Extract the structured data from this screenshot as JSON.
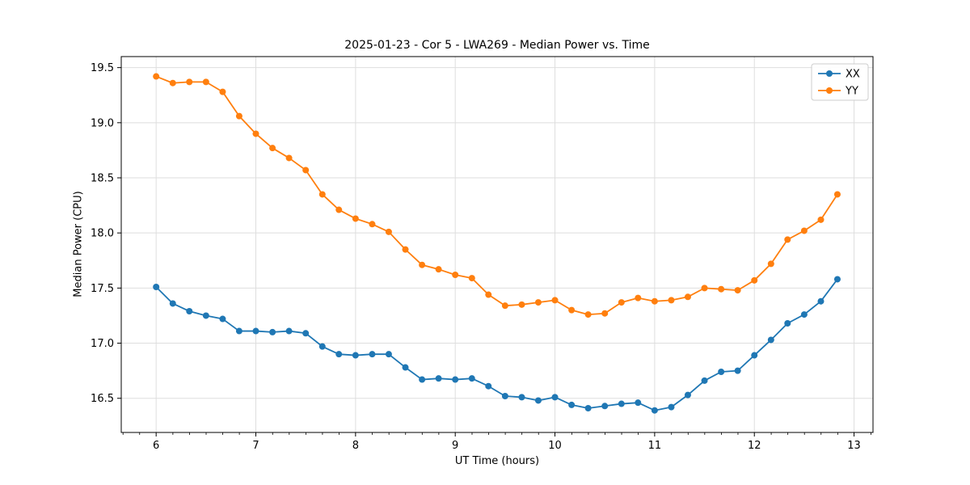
{
  "figure": {
    "background": "#ffffff"
  },
  "chart_data": {
    "type": "line",
    "title": "2025-01-23 - Cor 5 - LWA269 - Median Power vs. Time",
    "xlabel": "UT Time (hours)",
    "ylabel": "Median Power (CPU)",
    "xlim": [
      5.65,
      13.19
    ],
    "ylim": [
      16.19,
      19.6
    ],
    "xticks": [
      6,
      7,
      8,
      9,
      10,
      11,
      12,
      13
    ],
    "yticks": [
      16.5,
      17.0,
      17.5,
      18.0,
      18.5,
      19.0,
      19.5
    ],
    "x_minor_tick_step": 0.1667,
    "grid": true,
    "grid_color": "#dedede",
    "legend_position": "upper right",
    "x": [
      6.0,
      6.167,
      6.333,
      6.5,
      6.667,
      6.833,
      7.0,
      7.167,
      7.333,
      7.5,
      7.667,
      7.833,
      8.0,
      8.167,
      8.333,
      8.5,
      8.667,
      8.833,
      9.0,
      9.167,
      9.333,
      9.5,
      9.667,
      9.833,
      10.0,
      10.167,
      10.333,
      10.5,
      10.667,
      10.833,
      11.0,
      11.167,
      11.333,
      11.5,
      11.667,
      11.833,
      12.0,
      12.167,
      12.333,
      12.5,
      12.667,
      12.833
    ],
    "series": [
      {
        "name": "XX",
        "color": "#1f77b4",
        "values": [
          17.51,
          17.36,
          17.29,
          17.25,
          17.22,
          17.11,
          17.11,
          17.1,
          17.11,
          17.09,
          16.97,
          16.9,
          16.89,
          16.9,
          16.9,
          16.78,
          16.67,
          16.68,
          16.67,
          16.68,
          16.61,
          16.52,
          16.51,
          16.48,
          16.51,
          16.44,
          16.41,
          16.43,
          16.45,
          16.46,
          16.39,
          16.42,
          16.53,
          16.66,
          16.74,
          16.75,
          16.89,
          17.03,
          17.18,
          17.26,
          17.38,
          17.58
        ]
      },
      {
        "name": "YY",
        "color": "#ff7f0e",
        "values": [
          19.42,
          19.36,
          19.37,
          19.37,
          19.28,
          19.06,
          18.9,
          18.77,
          18.68,
          18.57,
          18.35,
          18.21,
          18.13,
          18.08,
          18.01,
          17.85,
          17.71,
          17.67,
          17.62,
          17.59,
          17.44,
          17.34,
          17.35,
          17.37,
          17.39,
          17.3,
          17.26,
          17.27,
          17.37,
          17.41,
          17.38,
          17.39,
          17.42,
          17.5,
          17.49,
          17.48,
          17.57,
          17.72,
          17.94,
          18.02,
          18.12,
          18.35
        ]
      }
    ]
  }
}
